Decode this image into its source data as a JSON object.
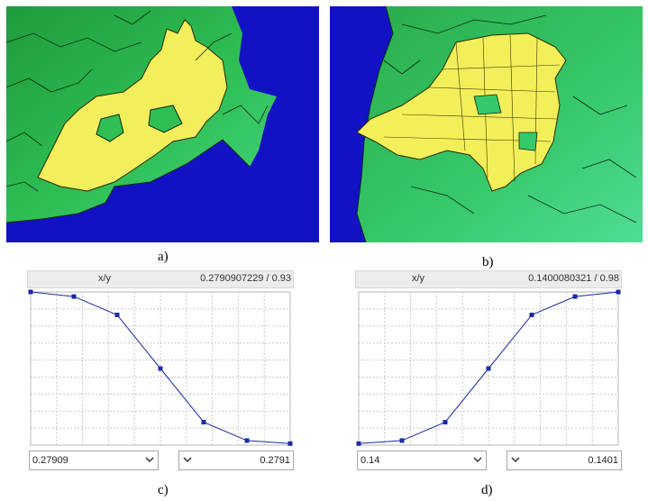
{
  "captions": {
    "a": "a)",
    "b": "b)",
    "c": "c)",
    "d": "d)"
  },
  "colors": {
    "water": "#1010c8",
    "land": "#2ab24a",
    "land_light": "#3fd17a",
    "highlight": "#f3ef5a",
    "curve": "#1a2aa8"
  },
  "panel_c": {
    "header_label": "x/y",
    "header_value": "0.2790907229 / 0.93",
    "left_input": "0.27909",
    "right_input": "0.2791",
    "left_arrow_icon": "chevron-down-icon",
    "right_arrow_icon": "chevron-down-icon"
  },
  "panel_d": {
    "header_label": "x/y",
    "header_value": "0.1400080321 / 0.98",
    "left_input": "0.14",
    "right_input": "0.1401",
    "left_arrow_icon": "chevron-down-icon",
    "right_arrow_icon": "chevron-down-icon"
  },
  "chart_data": [
    {
      "type": "line",
      "x": [
        0,
        1,
        2,
        3,
        4,
        5,
        6
      ],
      "values": [
        1.0,
        0.97,
        0.85,
        0.5,
        0.15,
        0.03,
        0.01
      ],
      "xlim": [
        0,
        6
      ],
      "ylim": [
        0,
        1
      ],
      "grid": true,
      "title": "",
      "xlabel": "",
      "ylabel": ""
    },
    {
      "type": "line",
      "x": [
        0,
        1,
        2,
        3,
        4,
        5,
        6
      ],
      "values": [
        0.01,
        0.03,
        0.15,
        0.5,
        0.85,
        0.97,
        1.0
      ],
      "xlim": [
        0,
        6
      ],
      "ylim": [
        0,
        1
      ],
      "grid": true,
      "title": "",
      "xlabel": "",
      "ylabel": ""
    }
  ]
}
